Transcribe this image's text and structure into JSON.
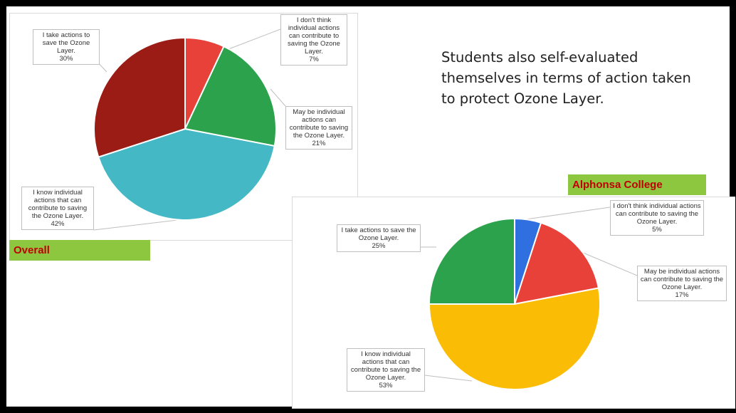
{
  "headline": "Students also self-evaluated\nthemselves in terms of action taken\nto protect Ozone Layer.",
  "chart_data": [
    {
      "type": "pie",
      "title": "Overall",
      "slices": [
        {
          "label": "I don't think individual actions can contribute to saving the Ozone Layer.",
          "value": 7,
          "display": "7%",
          "color": "#e8413a"
        },
        {
          "label": "May be individual actions can contribute to saving the Ozone Layer.",
          "value": 21,
          "display": "21%",
          "color": "#2ca24c"
        },
        {
          "label": "I know individual actions that can contribute to saving the Ozone Layer.",
          "value": 42,
          "display": "42%",
          "color": "#45b8c6"
        },
        {
          "label": "I take actions to save the Ozone Layer.",
          "value": 30,
          "display": "30%",
          "color": "#9a1c14"
        }
      ]
    },
    {
      "type": "pie",
      "title": "Alphonsa College",
      "slices": [
        {
          "label": "I don't think individual actions can contribute to saving the Ozone Layer.",
          "value": 5,
          "display": "5%",
          "color": "#2f6fe0"
        },
        {
          "label": "May be individual actions can contribute to saving the Ozone Layer.",
          "value": 17,
          "display": "17%",
          "color": "#e8413a"
        },
        {
          "label": "I know individual actions that can contribute to saving the Ozone Layer.",
          "value": 53,
          "display": "53%",
          "color": "#fbbc05"
        },
        {
          "label": "I take actions to save the Ozone Layer.",
          "value": 25,
          "display": "25%",
          "color": "#2ca24c"
        }
      ]
    }
  ]
}
